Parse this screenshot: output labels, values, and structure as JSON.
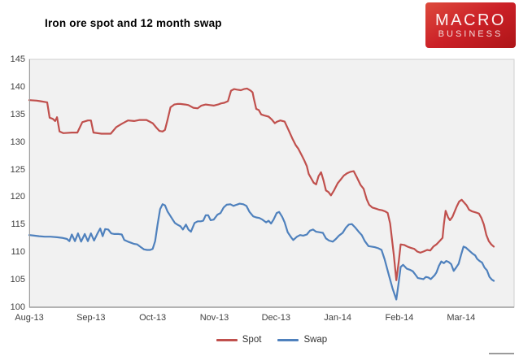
{
  "title": "Iron ore spot and 12 month swap",
  "logo": {
    "line1": "MACRO",
    "line2": "BUSINESS",
    "bg_color": "#c32026",
    "text_color": "#ffffff"
  },
  "chart_data": {
    "type": "line",
    "title": "Iron ore spot and 12 month swap",
    "plot_bg": "#f1f1f1",
    "axis_line_color": "#9c9c9c",
    "plot_border_color": "#cfcfcf",
    "tick_text_color": "#3f3f3f",
    "grid": false,
    "legend_position": "bottom-center",
    "x_axis": {
      "tick_labels": [
        "Aug-13",
        "Sep-13",
        "Oct-13",
        "Nov-13",
        "Dec-13",
        "Jan-14",
        "Feb-14",
        "Mar-14"
      ],
      "unit": "months-since-Aug-2013",
      "range": [
        0,
        7.86
      ]
    },
    "y_axis": {
      "ticks": [
        100,
        105,
        110,
        115,
        120,
        125,
        130,
        135,
        140,
        145
      ],
      "range": [
        100,
        145
      ]
    },
    "series": [
      {
        "name": "Spot",
        "color": "#c0504d",
        "points": [
          [
            0,
            137.6
          ],
          [
            0.12,
            137.5
          ],
          [
            0.18,
            137.4
          ],
          [
            0.29,
            137.2
          ],
          [
            0.33,
            134.4
          ],
          [
            0.38,
            134.2
          ],
          [
            0.42,
            133.8
          ],
          [
            0.45,
            134.5
          ],
          [
            0.49,
            131.9
          ],
          [
            0.55,
            131.6
          ],
          [
            0.69,
            131.7
          ],
          [
            0.78,
            131.7
          ],
          [
            0.86,
            133.6
          ],
          [
            0.95,
            133.9
          ],
          [
            1.0,
            133.9
          ],
          [
            1.04,
            131.7
          ],
          [
            1.17,
            131.5
          ],
          [
            1.32,
            131.5
          ],
          [
            1.41,
            132.7
          ],
          [
            1.5,
            133.3
          ],
          [
            1.6,
            133.9
          ],
          [
            1.7,
            133.8
          ],
          [
            1.79,
            134.0
          ],
          [
            1.9,
            134.0
          ],
          [
            1.95,
            133.7
          ],
          [
            2.0,
            133.4
          ],
          [
            2.06,
            132.6
          ],
          [
            2.11,
            132.0
          ],
          [
            2.16,
            131.9
          ],
          [
            2.2,
            132.2
          ],
          [
            2.24,
            134.0
          ],
          [
            2.29,
            136.3
          ],
          [
            2.35,
            136.8
          ],
          [
            2.4,
            136.9
          ],
          [
            2.45,
            136.9
          ],
          [
            2.53,
            136.8
          ],
          [
            2.58,
            136.7
          ],
          [
            2.66,
            136.2
          ],
          [
            2.73,
            136.1
          ],
          [
            2.79,
            136.6
          ],
          [
            2.86,
            136.8
          ],
          [
            2.93,
            136.7
          ],
          [
            2.99,
            136.6
          ],
          [
            3.06,
            136.8
          ],
          [
            3.11,
            137.0
          ],
          [
            3.16,
            137.1
          ],
          [
            3.22,
            137.4
          ],
          [
            3.27,
            139.3
          ],
          [
            3.32,
            139.6
          ],
          [
            3.37,
            139.5
          ],
          [
            3.43,
            139.4
          ],
          [
            3.48,
            139.6
          ],
          [
            3.53,
            139.7
          ],
          [
            3.59,
            139.3
          ],
          [
            3.62,
            139.0
          ],
          [
            3.64,
            137.9
          ],
          [
            3.68,
            136.0
          ],
          [
            3.72,
            135.8
          ],
          [
            3.76,
            135.0
          ],
          [
            3.81,
            134.8
          ],
          [
            3.88,
            134.6
          ],
          [
            3.93,
            134.1
          ],
          [
            3.98,
            133.4
          ],
          [
            4.02,
            133.7
          ],
          [
            4.07,
            133.9
          ],
          [
            4.14,
            133.7
          ],
          [
            4.21,
            132.0
          ],
          [
            4.27,
            130.5
          ],
          [
            4.32,
            129.4
          ],
          [
            4.36,
            128.8
          ],
          [
            4.42,
            127.5
          ],
          [
            4.46,
            126.6
          ],
          [
            4.5,
            125.6
          ],
          [
            4.53,
            124.2
          ],
          [
            4.57,
            123.4
          ],
          [
            4.61,
            122.6
          ],
          [
            4.65,
            122.3
          ],
          [
            4.69,
            123.8
          ],
          [
            4.73,
            124.5
          ],
          [
            4.77,
            123.0
          ],
          [
            4.81,
            121.2
          ],
          [
            4.85,
            120.9
          ],
          [
            4.89,
            120.3
          ],
          [
            4.94,
            121.2
          ],
          [
            5.0,
            122.5
          ],
          [
            5.05,
            123.2
          ],
          [
            5.1,
            123.9
          ],
          [
            5.15,
            124.3
          ],
          [
            5.21,
            124.6
          ],
          [
            5.26,
            124.7
          ],
          [
            5.31,
            123.6
          ],
          [
            5.37,
            122.2
          ],
          [
            5.42,
            121.5
          ],
          [
            5.47,
            119.6
          ],
          [
            5.51,
            118.6
          ],
          [
            5.56,
            118.1
          ],
          [
            5.62,
            117.9
          ],
          [
            5.67,
            117.7
          ],
          [
            5.72,
            117.6
          ],
          [
            5.77,
            117.4
          ],
          [
            5.81,
            117.1
          ],
          [
            5.85,
            115.2
          ],
          [
            5.91,
            109.5
          ],
          [
            5.95,
            104.9
          ],
          [
            5.99,
            108.3
          ],
          [
            6.02,
            111.4
          ],
          [
            6.08,
            111.3
          ],
          [
            6.13,
            111.0
          ],
          [
            6.18,
            110.8
          ],
          [
            6.24,
            110.6
          ],
          [
            6.29,
            110.1
          ],
          [
            6.34,
            109.9
          ],
          [
            6.39,
            110.1
          ],
          [
            6.45,
            110.4
          ],
          [
            6.5,
            110.3
          ],
          [
            6.55,
            111.0
          ],
          [
            6.6,
            111.4
          ],
          [
            6.66,
            112.1
          ],
          [
            6.7,
            112.6
          ],
          [
            6.72,
            115.0
          ],
          [
            6.75,
            117.5
          ],
          [
            6.79,
            116.3
          ],
          [
            6.82,
            115.8
          ],
          [
            6.86,
            116.4
          ],
          [
            6.89,
            117.2
          ],
          [
            6.93,
            118.3
          ],
          [
            6.97,
            119.2
          ],
          [
            7.01,
            119.5
          ],
          [
            7.05,
            119.0
          ],
          [
            7.09,
            118.5
          ],
          [
            7.13,
            117.7
          ],
          [
            7.18,
            117.4
          ],
          [
            7.24,
            117.2
          ],
          [
            7.29,
            117.0
          ],
          [
            7.33,
            116.2
          ],
          [
            7.37,
            115.0
          ],
          [
            7.41,
            113.1
          ],
          [
            7.45,
            112.0
          ],
          [
            7.49,
            111.4
          ],
          [
            7.53,
            111.0
          ]
        ]
      },
      {
        "name": "Swap",
        "color": "#4f81bd",
        "points": [
          [
            0,
            113.1
          ],
          [
            0.08,
            113.0
          ],
          [
            0.16,
            112.9
          ],
          [
            0.25,
            112.8
          ],
          [
            0.34,
            112.8
          ],
          [
            0.45,
            112.7
          ],
          [
            0.53,
            112.6
          ],
          [
            0.61,
            112.4
          ],
          [
            0.65,
            112.0
          ],
          [
            0.69,
            113.2
          ],
          [
            0.74,
            112.0
          ],
          [
            0.79,
            113.4
          ],
          [
            0.84,
            111.9
          ],
          [
            0.9,
            113.3
          ],
          [
            0.95,
            112.0
          ],
          [
            1.0,
            113.4
          ],
          [
            1.05,
            112.1
          ],
          [
            1.11,
            113.5
          ],
          [
            1.15,
            114.3
          ],
          [
            1.19,
            112.9
          ],
          [
            1.23,
            114.2
          ],
          [
            1.28,
            114.1
          ],
          [
            1.33,
            113.4
          ],
          [
            1.38,
            113.3
          ],
          [
            1.45,
            113.3
          ],
          [
            1.5,
            113.2
          ],
          [
            1.54,
            112.2
          ],
          [
            1.6,
            111.9
          ],
          [
            1.65,
            111.7
          ],
          [
            1.7,
            111.5
          ],
          [
            1.75,
            111.4
          ],
          [
            1.81,
            110.9
          ],
          [
            1.86,
            110.5
          ],
          [
            1.91,
            110.4
          ],
          [
            1.96,
            110.4
          ],
          [
            2.0,
            110.6
          ],
          [
            2.04,
            112.0
          ],
          [
            2.08,
            115.0
          ],
          [
            2.12,
            117.8
          ],
          [
            2.16,
            118.7
          ],
          [
            2.2,
            118.5
          ],
          [
            2.24,
            117.4
          ],
          [
            2.28,
            116.7
          ],
          [
            2.32,
            116.0
          ],
          [
            2.36,
            115.3
          ],
          [
            2.4,
            115.0
          ],
          [
            2.45,
            114.7
          ],
          [
            2.49,
            114.1
          ],
          [
            2.54,
            115.0
          ],
          [
            2.58,
            114.1
          ],
          [
            2.62,
            113.7
          ],
          [
            2.68,
            115.3
          ],
          [
            2.73,
            115.6
          ],
          [
            2.78,
            115.6
          ],
          [
            2.82,
            115.7
          ],
          [
            2.86,
            116.7
          ],
          [
            2.9,
            116.7
          ],
          [
            2.94,
            115.8
          ],
          [
            2.99,
            115.9
          ],
          [
            3.05,
            116.8
          ],
          [
            3.1,
            117.1
          ],
          [
            3.15,
            118.1
          ],
          [
            3.2,
            118.6
          ],
          [
            3.26,
            118.7
          ],
          [
            3.31,
            118.4
          ],
          [
            3.36,
            118.6
          ],
          [
            3.41,
            118.8
          ],
          [
            3.47,
            118.7
          ],
          [
            3.52,
            118.4
          ],
          [
            3.57,
            117.3
          ],
          [
            3.63,
            116.5
          ],
          [
            3.68,
            116.3
          ],
          [
            3.73,
            116.2
          ],
          [
            3.78,
            115.9
          ],
          [
            3.84,
            115.4
          ],
          [
            3.88,
            115.7
          ],
          [
            3.92,
            115.2
          ],
          [
            3.96,
            115.9
          ],
          [
            4.01,
            117.1
          ],
          [
            4.05,
            117.3
          ],
          [
            4.1,
            116.4
          ],
          [
            4.14,
            115.4
          ],
          [
            4.19,
            113.6
          ],
          [
            4.25,
            112.6
          ],
          [
            4.28,
            112.2
          ],
          [
            4.34,
            112.8
          ],
          [
            4.39,
            113.1
          ],
          [
            4.44,
            113.0
          ],
          [
            4.5,
            113.2
          ],
          [
            4.55,
            113.9
          ],
          [
            4.6,
            114.1
          ],
          [
            4.65,
            113.7
          ],
          [
            4.71,
            113.6
          ],
          [
            4.76,
            113.5
          ],
          [
            4.81,
            112.5
          ],
          [
            4.86,
            112.1
          ],
          [
            4.92,
            111.9
          ],
          [
            4.97,
            112.4
          ],
          [
            5.02,
            113.0
          ],
          [
            5.08,
            113.5
          ],
          [
            5.13,
            114.4
          ],
          [
            5.18,
            115.0
          ],
          [
            5.23,
            115.1
          ],
          [
            5.29,
            114.4
          ],
          [
            5.34,
            113.7
          ],
          [
            5.39,
            113.1
          ],
          [
            5.44,
            112.0
          ],
          [
            5.5,
            111.1
          ],
          [
            5.55,
            111.0
          ],
          [
            5.6,
            110.9
          ],
          [
            5.66,
            110.7
          ],
          [
            5.71,
            110.4
          ],
          [
            5.76,
            108.7
          ],
          [
            5.83,
            105.8
          ],
          [
            5.89,
            103.4
          ],
          [
            5.95,
            101.4
          ],
          [
            5.99,
            104.6
          ],
          [
            6.02,
            107.3
          ],
          [
            6.06,
            107.7
          ],
          [
            6.12,
            107.0
          ],
          [
            6.17,
            106.8
          ],
          [
            6.22,
            106.5
          ],
          [
            6.26,
            105.9
          ],
          [
            6.3,
            105.3
          ],
          [
            6.35,
            105.2
          ],
          [
            6.39,
            105.1
          ],
          [
            6.43,
            105.5
          ],
          [
            6.47,
            105.4
          ],
          [
            6.51,
            105.1
          ],
          [
            6.57,
            105.8
          ],
          [
            6.6,
            106.3
          ],
          [
            6.64,
            107.5
          ],
          [
            6.68,
            108.3
          ],
          [
            6.72,
            108.0
          ],
          [
            6.76,
            108.4
          ],
          [
            6.8,
            108.2
          ],
          [
            6.84,
            107.8
          ],
          [
            6.88,
            106.6
          ],
          [
            6.92,
            107.2
          ],
          [
            6.96,
            107.9
          ],
          [
            7.0,
            109.5
          ],
          [
            7.04,
            111.0
          ],
          [
            7.08,
            110.8
          ],
          [
            7.13,
            110.3
          ],
          [
            7.18,
            109.8
          ],
          [
            7.23,
            109.4
          ],
          [
            7.26,
            108.8
          ],
          [
            7.3,
            108.4
          ],
          [
            7.34,
            108.1
          ],
          [
            7.38,
            107.2
          ],
          [
            7.42,
            106.7
          ],
          [
            7.46,
            105.5
          ],
          [
            7.5,
            105.0
          ],
          [
            7.53,
            104.8
          ]
        ]
      }
    ],
    "legend": [
      {
        "label": "Spot",
        "color": "#c0504d"
      },
      {
        "label": "Swap",
        "color": "#4f81bd"
      }
    ]
  }
}
